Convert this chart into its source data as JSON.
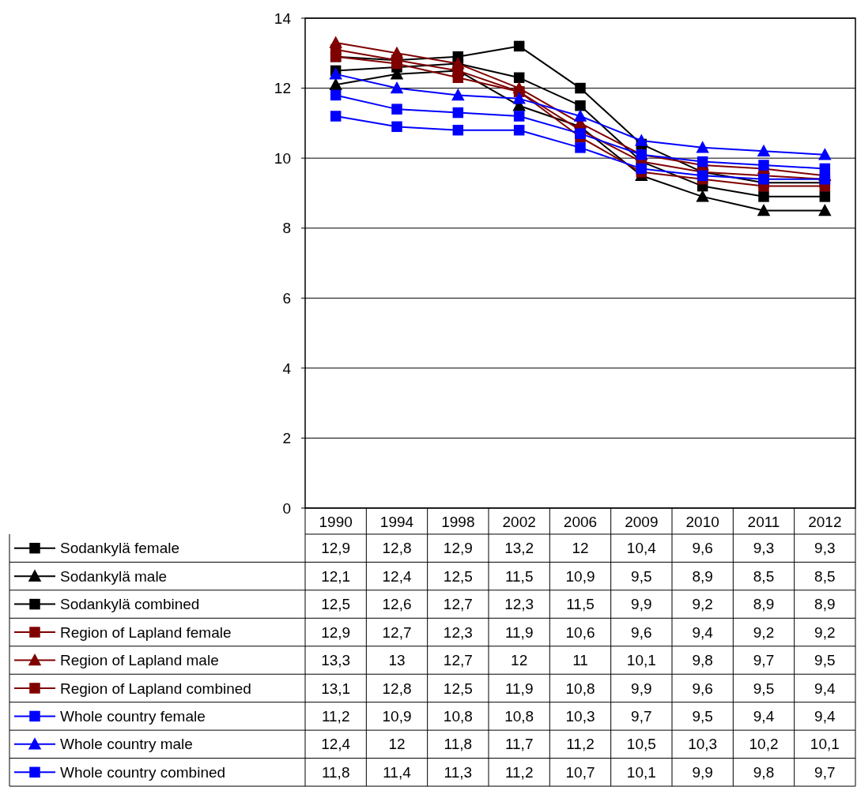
{
  "chart_data": {
    "type": "line",
    "categories": [
      "1990",
      "1994",
      "1998",
      "2002",
      "2006",
      "2009",
      "2010",
      "2011",
      "2012"
    ],
    "ylim": [
      0,
      14
    ],
    "yticks": [
      0,
      2,
      4,
      6,
      8,
      10,
      12,
      14
    ],
    "grid": "y",
    "legend": "bottom left",
    "series": [
      {
        "name": "Sodankylä female",
        "color": "#000000",
        "marker": "square",
        "values": [
          12.9,
          12.8,
          12.9,
          13.2,
          12,
          10.4,
          9.6,
          9.3,
          9.3
        ],
        "value_labels": [
          "12,9",
          "12,8",
          "12,9",
          "13,2",
          "12",
          "10,4",
          "9,6",
          "9,3",
          "9,3"
        ]
      },
      {
        "name": "Sodankylä male",
        "color": "#000000",
        "marker": "triangle",
        "values": [
          12.1,
          12.4,
          12.5,
          11.5,
          10.9,
          9.5,
          8.9,
          8.5,
          8.5
        ],
        "value_labels": [
          "12,1",
          "12,4",
          "12,5",
          "11,5",
          "10,9",
          "9,5",
          "8,9",
          "8,5",
          "8,5"
        ]
      },
      {
        "name": "Sodankylä combined",
        "color": "#000000",
        "marker": "square",
        "values": [
          12.5,
          12.6,
          12.7,
          12.3,
          11.5,
          9.9,
          9.2,
          8.9,
          8.9
        ],
        "value_labels": [
          "12,5",
          "12,6",
          "12,7",
          "12,3",
          "11,5",
          "9,9",
          "9,2",
          "8,9",
          "8,9"
        ]
      },
      {
        "name": "Region of Lapland female",
        "color": "#800000",
        "marker": "square",
        "values": [
          12.9,
          12.7,
          12.3,
          11.9,
          10.6,
          9.6,
          9.4,
          9.2,
          9.2
        ],
        "value_labels": [
          "12,9",
          "12,7",
          "12,3",
          "11,9",
          "10,6",
          "9,6",
          "9,4",
          "9,2",
          "9,2"
        ]
      },
      {
        "name": "Region of Lapland male",
        "color": "#800000",
        "marker": "triangle",
        "values": [
          13.3,
          13,
          12.7,
          12,
          11,
          10.1,
          9.8,
          9.7,
          9.5
        ],
        "value_labels": [
          "13,3",
          "13",
          "12,7",
          "12",
          "11",
          "10,1",
          "9,8",
          "9,7",
          "9,5"
        ]
      },
      {
        "name": "Region of Lapland combined",
        "color": "#800000",
        "marker": "square",
        "values": [
          13.1,
          12.8,
          12.5,
          11.9,
          10.8,
          9.9,
          9.6,
          9.5,
          9.4
        ],
        "value_labels": [
          "13,1",
          "12,8",
          "12,5",
          "11,9",
          "10,8",
          "9,9",
          "9,6",
          "9,5",
          "9,4"
        ]
      },
      {
        "name": "Whole country female",
        "color": "#0000ff",
        "marker": "square",
        "values": [
          11.2,
          10.9,
          10.8,
          10.8,
          10.3,
          9.7,
          9.5,
          9.4,
          9.4
        ],
        "value_labels": [
          "11,2",
          "10,9",
          "10,8",
          "10,8",
          "10,3",
          "9,7",
          "9,5",
          "9,4",
          "9,4"
        ]
      },
      {
        "name": "Whole country male",
        "color": "#0000ff",
        "marker": "triangle",
        "values": [
          12.4,
          12,
          11.8,
          11.7,
          11.2,
          10.5,
          10.3,
          10.2,
          10.1
        ],
        "value_labels": [
          "12,4",
          "12",
          "11,8",
          "11,7",
          "11,2",
          "10,5",
          "10,3",
          "10,2",
          "10,1"
        ]
      },
      {
        "name": "Whole country combined",
        "color": "#0000ff",
        "marker": "square",
        "values": [
          11.8,
          11.4,
          11.3,
          11.2,
          10.7,
          10.1,
          9.9,
          9.8,
          9.7
        ],
        "value_labels": [
          "11,8",
          "11,4",
          "11,3",
          "11,2",
          "10,7",
          "10,1",
          "9,9",
          "9,8",
          "9,7"
        ]
      }
    ]
  }
}
